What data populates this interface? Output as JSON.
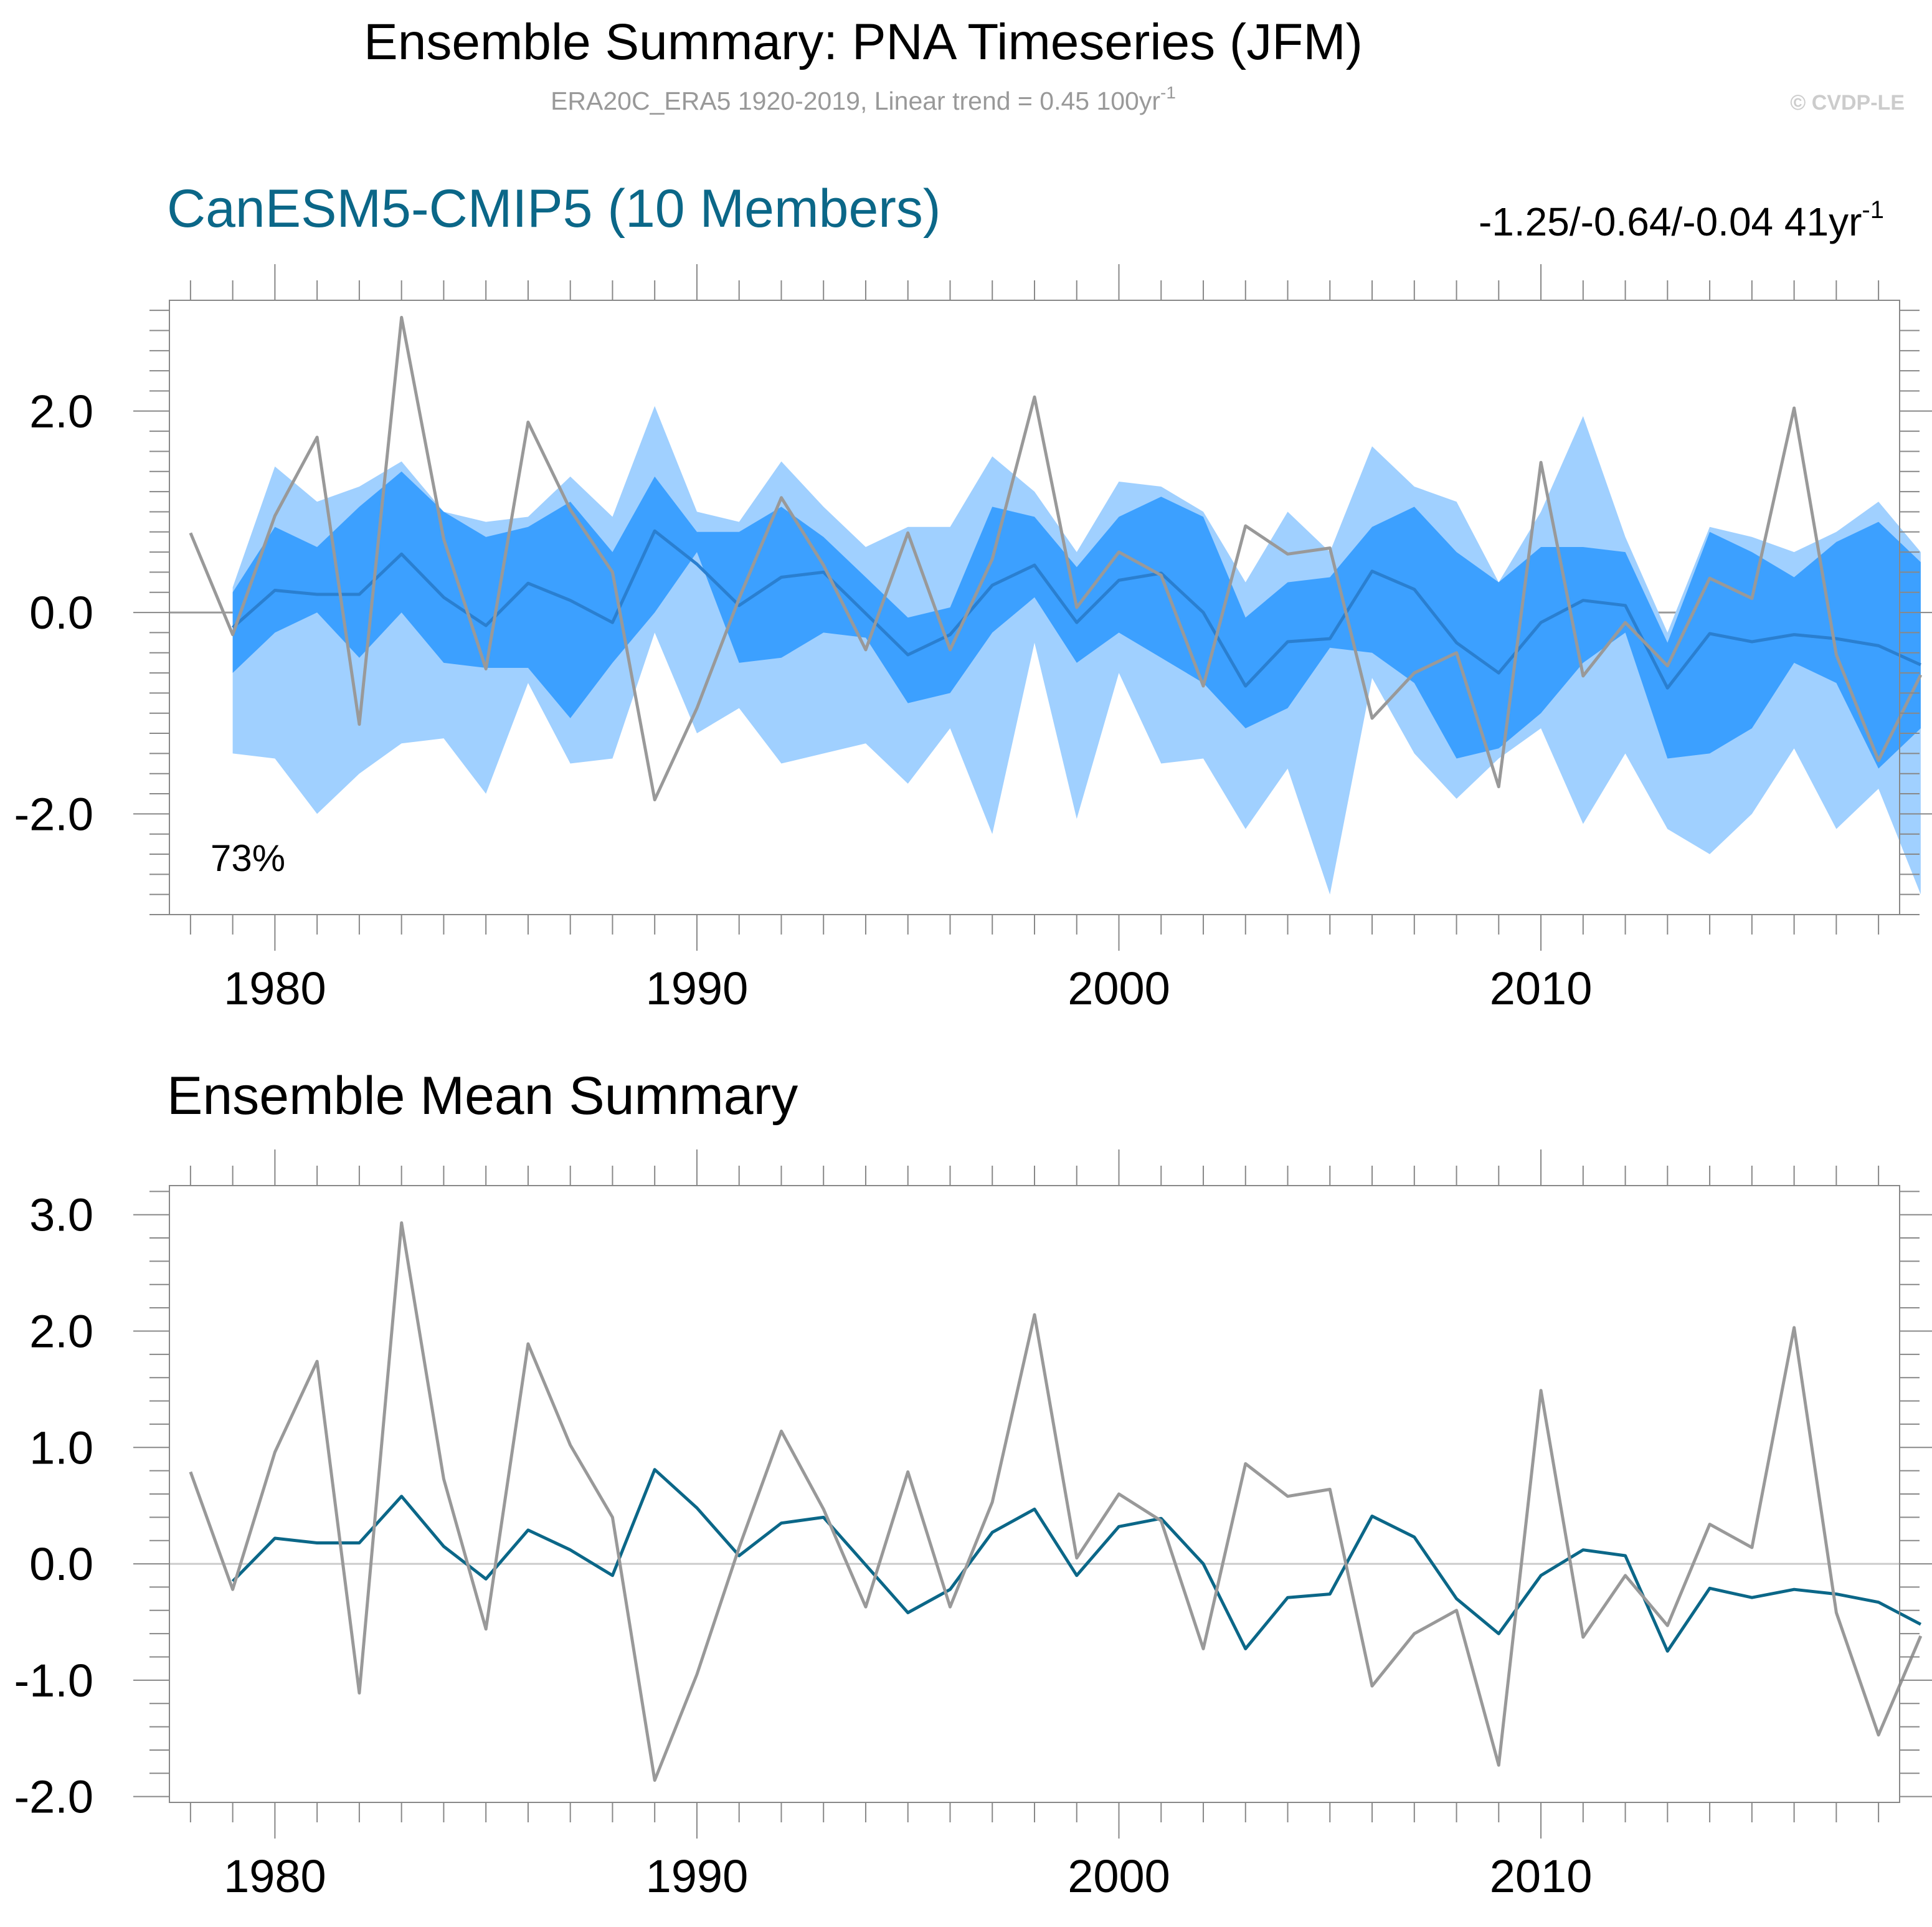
{
  "header": {
    "title": "Ensemble Summary: PNA Timeseries (JFM)",
    "subtitle_main": "ERA20C_ERA5 1920-2019, Linear trend = 0.45 100yr",
    "subtitle_sup": "-1",
    "copyright": "© CVDP-LE"
  },
  "panel1": {
    "title": "CanESM5-CMIP5 (10 Members)",
    "trend_main": "-1.25/-0.64/-0.04 41yr",
    "trend_sup": "-1",
    "percent_label": "73%"
  },
  "panel2": {
    "title": "Ensemble Mean Summary"
  },
  "colors": {
    "outer_band": "#a0d0ff",
    "inner_band": "#3ca0ff",
    "ens_mean_line_p1": "#2a7fd0",
    "ens_mean_line_p2": "#0b6788",
    "obs_line": "#999999",
    "frame": "#888888",
    "zero_line": "#cccccc",
    "title_blue": "#0b6788",
    "subtitle_gray": "#999999",
    "copyright_gray": "#cccccc"
  },
  "chart_data": [
    {
      "type": "area",
      "title": "CanESM5-CMIP5 (10 Members)",
      "x": [
        1979,
        1980,
        1981,
        1982,
        1983,
        1984,
        1985,
        1986,
        1987,
        1988,
        1989,
        1990,
        1991,
        1992,
        1993,
        1994,
        1995,
        1996,
        1997,
        1998,
        1999,
        2000,
        2001,
        2002,
        2003,
        2004,
        2005,
        2006,
        2007,
        2008,
        2009,
        2010,
        2011,
        2012,
        2013,
        2014,
        2015,
        2016,
        2017,
        2018,
        2019
      ],
      "xlim": [
        1977.5,
        2018.5
      ],
      "x_ticks": [
        1980,
        1990,
        2000,
        2010
      ],
      "x_tick_labels": [
        "1980",
        "1990",
        "2000",
        "2010"
      ],
      "ylim": [
        -3.0,
        3.1
      ],
      "y_ticks": [
        -2.0,
        0.0,
        2.0
      ],
      "y_tick_labels": [
        "-2.0",
        "0.0",
        "2.0"
      ],
      "series": [
        {
          "name": "ensemble-max",
          "values": [
            0.25,
            1.45,
            1.1,
            1.25,
            1.5,
            1.0,
            0.9,
            0.95,
            1.35,
            0.95,
            2.05,
            1.0,
            0.9,
            1.5,
            1.05,
            0.65,
            0.85,
            0.85,
            1.55,
            1.2,
            0.6,
            1.3,
            1.25,
            1.0,
            0.3,
            1.0,
            0.6,
            1.65,
            1.25,
            1.1,
            0.3,
            1.0,
            1.95,
            0.75,
            -0.2,
            0.85,
            0.75,
            0.6,
            0.8,
            1.1,
            0.6
          ]
        },
        {
          "name": "ensemble-upper",
          "values": [
            0.2,
            0.85,
            0.65,
            1.05,
            1.4,
            1.0,
            0.75,
            0.85,
            1.1,
            0.6,
            1.35,
            0.8,
            0.8,
            1.05,
            0.75,
            0.35,
            -0.05,
            0.05,
            1.05,
            0.95,
            0.45,
            0.95,
            1.15,
            0.95,
            -0.05,
            0.3,
            0.35,
            0.85,
            1.05,
            0.6,
            0.3,
            0.65,
            0.65,
            0.6,
            -0.3,
            0.8,
            0.6,
            0.35,
            0.7,
            0.9,
            0.5
          ]
        },
        {
          "name": "ensemble-mean",
          "values": [
            -0.15,
            0.22,
            0.18,
            0.18,
            0.58,
            0.15,
            -0.13,
            0.29,
            0.12,
            -0.1,
            0.81,
            0.48,
            0.07,
            0.35,
            0.4,
            -0.01,
            -0.42,
            -0.22,
            0.27,
            0.47,
            -0.1,
            0.32,
            0.39,
            0.0,
            -0.73,
            -0.29,
            -0.26,
            0.41,
            0.23,
            -0.3,
            -0.6,
            -0.1,
            0.12,
            0.07,
            -0.75,
            -0.21,
            -0.29,
            -0.22,
            -0.26,
            -0.33,
            -0.52
          ]
        },
        {
          "name": "ensemble-lower",
          "values": [
            -0.6,
            -0.2,
            0.0,
            -0.45,
            0.0,
            -0.5,
            -0.55,
            -0.55,
            -1.05,
            -0.5,
            0.0,
            0.6,
            -0.5,
            -0.45,
            -0.2,
            -0.25,
            -0.9,
            -0.8,
            -0.2,
            0.15,
            -0.5,
            -0.2,
            -0.45,
            -0.7,
            -1.15,
            -0.95,
            -0.35,
            -0.4,
            -0.7,
            -1.45,
            -1.35,
            -1.0,
            -0.5,
            -0.2,
            -1.45,
            -1.4,
            -1.15,
            -0.5,
            -0.7,
            -1.55,
            -1.15
          ]
        },
        {
          "name": "ensemble-min",
          "values": [
            -1.4,
            -1.45,
            -2.0,
            -1.6,
            -1.3,
            -1.25,
            -1.8,
            -0.7,
            -1.5,
            -1.45,
            -0.2,
            -1.2,
            -0.95,
            -1.5,
            -1.4,
            -1.3,
            -1.7,
            -1.15,
            -2.2,
            -0.3,
            -2.05,
            -0.6,
            -1.5,
            -1.45,
            -2.15,
            -1.55,
            -2.8,
            -0.65,
            -1.4,
            -1.85,
            -1.45,
            -1.15,
            -2.1,
            -1.4,
            -2.15,
            -2.4,
            -2.0,
            -1.35,
            -2.15,
            -1.75,
            -2.8
          ]
        },
        {
          "name": "observations",
          "values": [
            -0.22,
            0.96,
            1.74,
            -1.11,
            2.93,
            0.73,
            -0.56,
            1.89,
            1.02,
            0.4,
            -1.86,
            -0.95,
            0.14,
            1.14,
            0.47,
            -0.37,
            0.79,
            -0.37,
            0.53,
            2.14,
            0.05,
            0.6,
            0.37,
            -0.73,
            0.86,
            0.58,
            0.64,
            -1.05,
            -0.6,
            -0.4,
            -1.73,
            1.49,
            -0.63,
            -0.1,
            -0.53,
            0.34,
            0.14,
            2.03,
            -0.42,
            -1.47,
            -0.62
          ]
        }
      ],
      "obs_start": {
        "x": 1978,
        "value": 0.79
      }
    },
    {
      "type": "line",
      "title": "Ensemble Mean Summary",
      "x": [
        1979,
        1980,
        1981,
        1982,
        1983,
        1984,
        1985,
        1986,
        1987,
        1988,
        1989,
        1990,
        1991,
        1992,
        1993,
        1994,
        1995,
        1996,
        1997,
        1998,
        1999,
        2000,
        2001,
        2002,
        2003,
        2004,
        2005,
        2006,
        2007,
        2008,
        2009,
        2010,
        2011,
        2012,
        2013,
        2014,
        2015,
        2016,
        2017,
        2018,
        2019
      ],
      "xlim": [
        1977.5,
        2018.5
      ],
      "x_ticks": [
        1980,
        1990,
        2000,
        2010
      ],
      "x_tick_labels": [
        "1980",
        "1990",
        "2000",
        "2010"
      ],
      "ylim": [
        -2.05,
        3.25
      ],
      "y_ticks": [
        -2.0,
        -1.0,
        0.0,
        1.0,
        2.0,
        3.0
      ],
      "y_tick_labels": [
        "-2.0",
        "-1.0",
        "0.0",
        "1.0",
        "2.0",
        "3.0"
      ],
      "series": [
        {
          "name": "ensemble-mean",
          "values": [
            -0.15,
            0.22,
            0.18,
            0.18,
            0.58,
            0.15,
            -0.13,
            0.29,
            0.12,
            -0.1,
            0.81,
            0.48,
            0.07,
            0.35,
            0.4,
            -0.01,
            -0.42,
            -0.22,
            0.27,
            0.47,
            -0.1,
            0.32,
            0.39,
            0.0,
            -0.73,
            -0.29,
            -0.26,
            0.41,
            0.23,
            -0.3,
            -0.6,
            -0.1,
            0.12,
            0.07,
            -0.75,
            -0.21,
            -0.29,
            -0.22,
            -0.26,
            -0.33,
            -0.52
          ]
        },
        {
          "name": "observations",
          "values": [
            -0.22,
            0.96,
            1.74,
            -1.11,
            2.93,
            0.73,
            -0.56,
            1.89,
            1.02,
            0.4,
            -1.86,
            -0.95,
            0.14,
            1.14,
            0.47,
            -0.37,
            0.79,
            -0.37,
            0.53,
            2.14,
            0.05,
            0.6,
            0.37,
            -0.73,
            0.86,
            0.58,
            0.64,
            -1.05,
            -0.6,
            -0.4,
            -1.73,
            1.49,
            -0.63,
            -0.1,
            -0.53,
            0.34,
            0.14,
            2.03,
            -0.42,
            -1.47,
            -0.62
          ]
        }
      ],
      "obs_start": {
        "x": 1978,
        "value": 0.79
      }
    }
  ]
}
